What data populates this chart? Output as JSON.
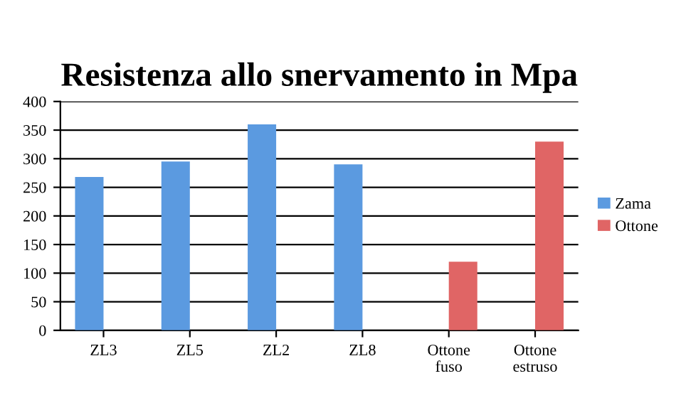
{
  "chart_data": {
    "type": "bar",
    "title": "Resistenza allo snervamento in Mpa",
    "categories": [
      "ZL3",
      "ZL5",
      "ZL2",
      "ZL8",
      "Ottone\nfuso",
      "Ottone\nestruso"
    ],
    "series": [
      {
        "name": "Zama",
        "color": "#5b9ae0",
        "values": [
          268,
          295,
          360,
          290,
          null,
          null
        ]
      },
      {
        "name": "Ottone",
        "color": "#e06565",
        "values": [
          null,
          null,
          null,
          null,
          120,
          330
        ]
      }
    ],
    "ylim": [
      0,
      400
    ],
    "yticks": [
      0,
      50,
      100,
      150,
      200,
      250,
      300,
      350,
      400
    ],
    "grid": "y",
    "legend": "right"
  }
}
